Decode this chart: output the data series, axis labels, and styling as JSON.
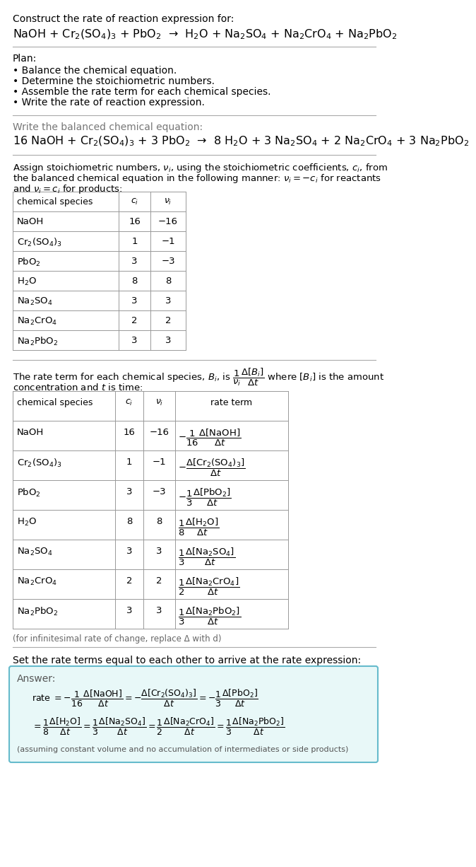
{
  "bg_color": "#ffffff",
  "title_line1": "Construct the rate of reaction expression for:",
  "reaction_unbalanced": "NaOH + Cr$_2$(SO$_4$)$_3$ + PbO$_2$  →  H$_2$O + Na$_2$SO$_4$ + Na$_2$CrO$_4$ + Na$_2$PbO$_2$",
  "plan_header": "Plan:",
  "plan_items": [
    "• Balance the chemical equation.",
    "• Determine the stoichiometric numbers.",
    "• Assemble the rate term for each chemical species.",
    "• Write the rate of reaction expression."
  ],
  "balanced_header": "Write the balanced chemical equation:",
  "reaction_balanced": "16 NaOH + Cr$_2$(SO$_4$)$_3$ + 3 PbO$_2$  →  8 H$_2$O + 3 Na$_2$SO$_4$ + 2 Na$_2$CrO$_4$ + 3 Na$_2$PbO$_2$",
  "stoich_header_line1": "Assign stoichiometric numbers, $\\nu_i$, using the stoichiometric coefficients, $c_i$, from",
  "stoich_header_line2": "the balanced chemical equation in the following manner: $\\nu_i = -c_i$ for reactants",
  "stoich_header_line3": "and $\\nu_i = c_i$ for products:",
  "table1_headers": [
    "chemical species",
    "$c_i$",
    "$\\nu_i$"
  ],
  "table1_data": [
    [
      "NaOH",
      "16",
      "−16"
    ],
    [
      "Cr$_2$(SO$_4$)$_3$",
      "1",
      "−1"
    ],
    [
      "PbO$_2$",
      "3",
      "−3"
    ],
    [
      "H$_2$O",
      "8",
      "8"
    ],
    [
      "Na$_2$SO$_4$",
      "3",
      "3"
    ],
    [
      "Na$_2$CrO$_4$",
      "2",
      "2"
    ],
    [
      "Na$_2$PbO$_2$",
      "3",
      "3"
    ]
  ],
  "rate_term_line1": "The rate term for each chemical species, $B_i$, is $\\dfrac{1}{\\nu_i}\\dfrac{\\Delta[B_i]}{\\Delta t}$ where $[B_i]$ is the amount",
  "rate_term_line2": "concentration and $t$ is time:",
  "table2_headers": [
    "chemical species",
    "$c_i$",
    "$\\nu_i$",
    "rate term"
  ],
  "table2_species": [
    "NaOH",
    "Cr$_2$(SO$_4$)$_3$",
    "PbO$_2$",
    "H$_2$O",
    "Na$_2$SO$_4$",
    "Na$_2$CrO$_4$",
    "Na$_2$PbO$_2$"
  ],
  "table2_ci": [
    "16",
    "1",
    "3",
    "8",
    "3",
    "2",
    "3"
  ],
  "table2_vi": [
    "−16",
    "−1",
    "−3",
    "8",
    "3",
    "2",
    "3"
  ],
  "table2_rate_num": [
    "−1",
    "−",
    "−1",
    "1",
    "1",
    "1",
    "1"
  ],
  "table2_rate_den": [
    "16",
    "",
    "3",
    "8",
    "3",
    "2",
    "3"
  ],
  "table2_rate_delta": [
    "$\\Delta$[NaOH]",
    "$\\Delta$[Cr$_2$(SO$_4$)$_3$]",
    "$\\Delta$[PbO$_2$]",
    "$\\Delta$[H$_2$O]",
    "$\\Delta$[Na$_2$SO$_4$]",
    "$\\Delta$[Na$_2$CrO$_4$]",
    "$\\Delta$[Na$_2$PbO$_2$]"
  ],
  "infinitesimal_note": "(for infinitesimal rate of change, replace Δ with d)",
  "rate_expr_header": "Set the rate terms equal to each other to arrive at the rate expression:",
  "answer_label": "Answer:",
  "answer_box_color": "#e8f8f8",
  "answer_box_border": "#66bbcc",
  "answer_indent": "    rate",
  "answer_line1_prefix": "rate",
  "answer_note": "(assuming constant volume and no accumulation of intermediates or side products)"
}
